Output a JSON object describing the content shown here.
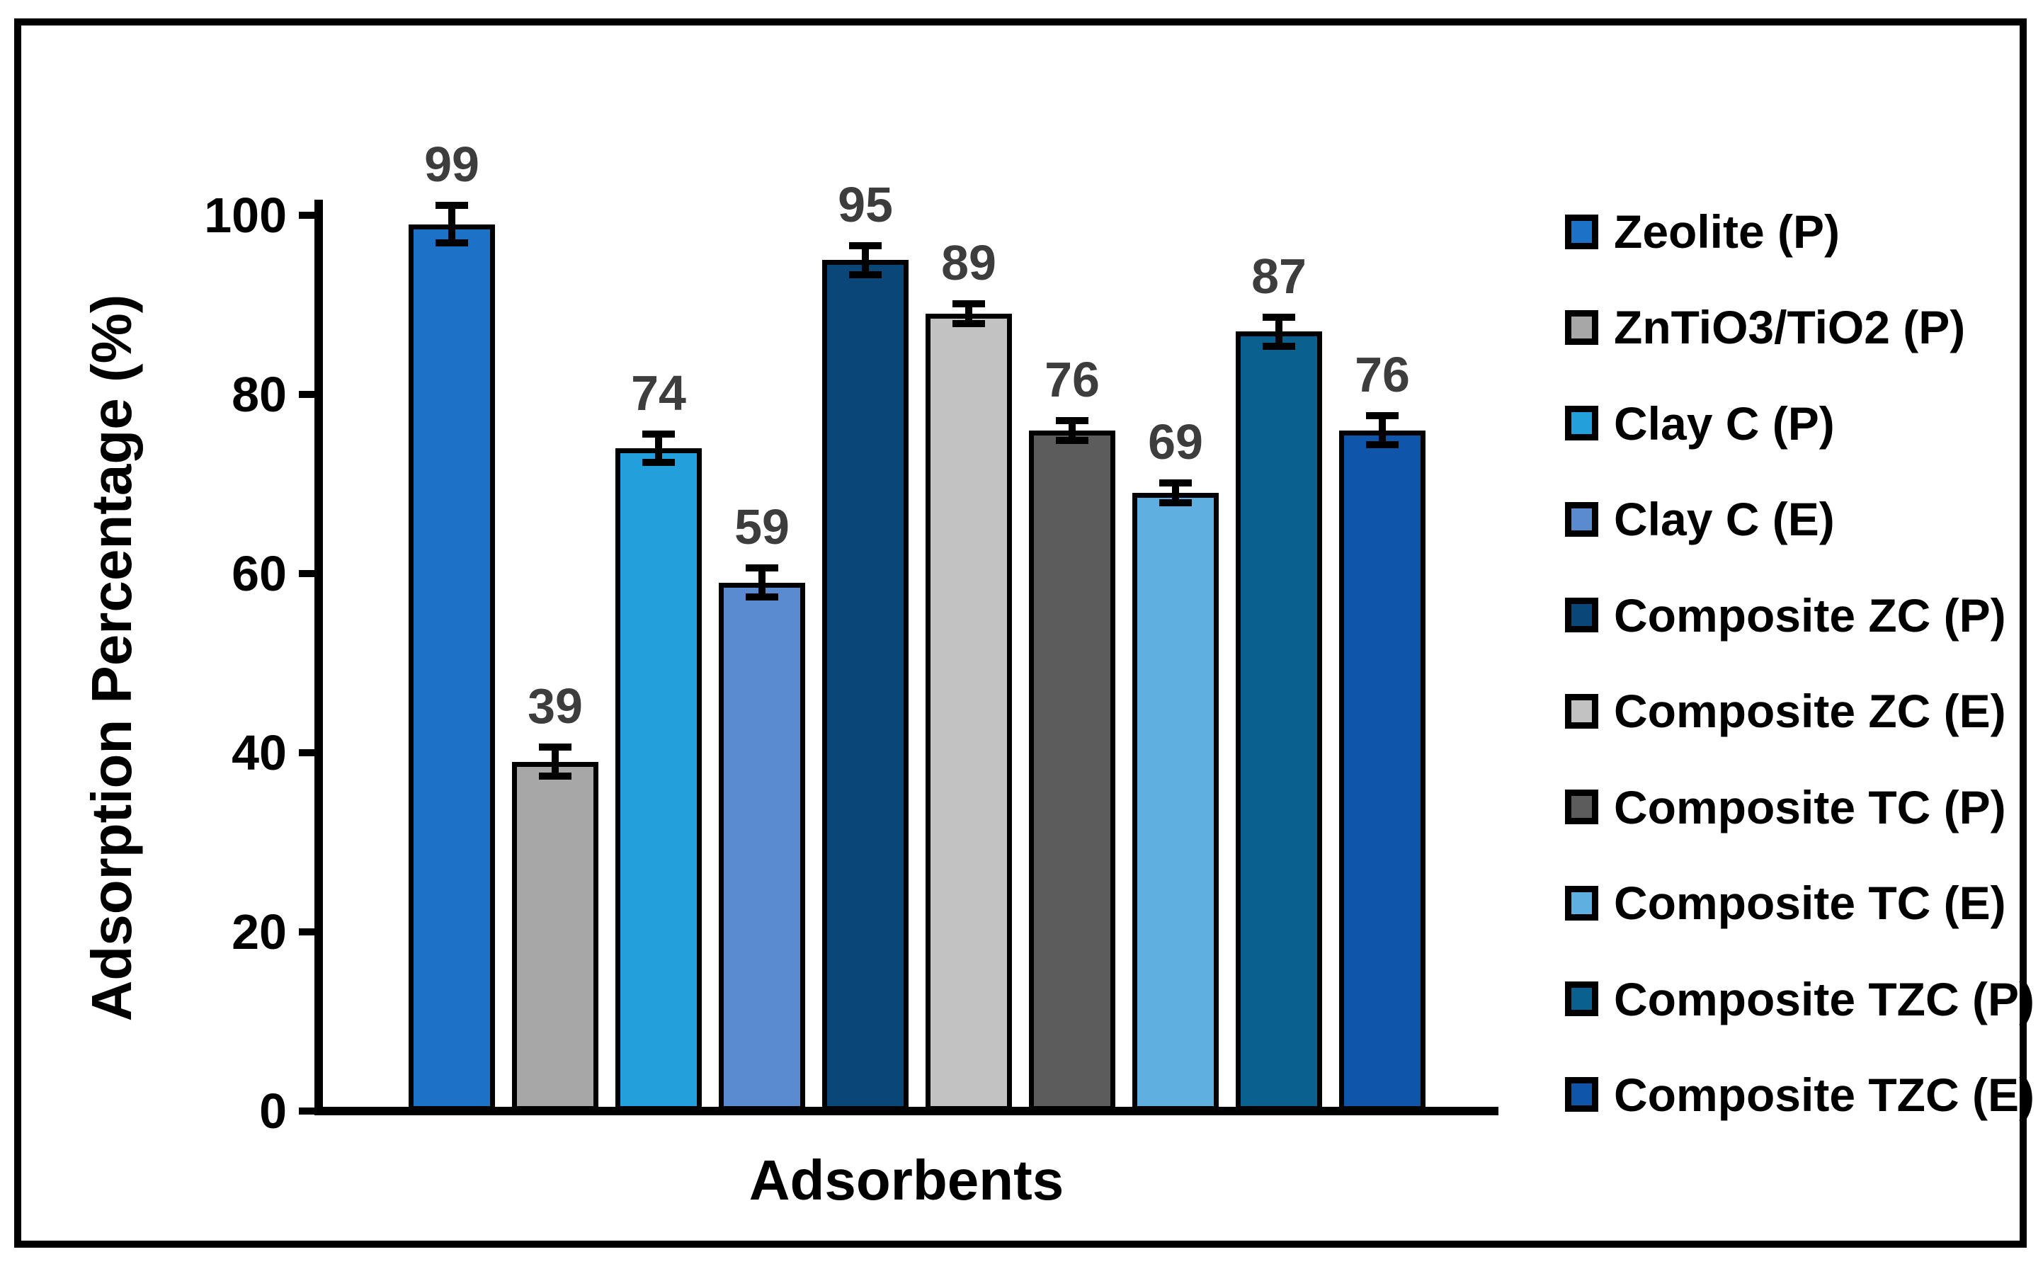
{
  "chart_data": {
    "type": "bar",
    "title": "",
    "xlabel": "Adsorbents",
    "ylabel": "Adsorption Percentage (%)",
    "ylim": [
      0,
      100
    ],
    "yticks": [
      0,
      20,
      40,
      60,
      80,
      100
    ],
    "grid": false,
    "legend_position": "right",
    "categories": [
      "Zeolite (P)",
      "ZnTiO3/TiO2 (P)",
      "Clay C (P)",
      "Clay C (E)",
      "Composite ZC (P)",
      "Composite ZC (E)",
      "Composite TC (P)",
      "Composite TC (E)",
      "Composite TZC (P)",
      "Composite TZC (E)"
    ],
    "values": [
      99,
      39,
      74,
      59,
      95,
      89,
      76,
      69,
      87,
      76
    ],
    "errors": [
      2.5,
      2,
      2,
      2,
      2,
      1.5,
      1.5,
      1.5,
      2,
      2
    ],
    "colors": [
      "#1C72C7",
      "#A7A7A7",
      "#22A0DB",
      "#5A8BD1",
      "#0A4678",
      "#C2C2C2",
      "#5C5C5C",
      "#5FB0E0",
      "#0A618F",
      "#0F56AB"
    ],
    "bar_outline_color": "#000000",
    "error_bar_color": "#000000",
    "value_label_color": "#3D3D3D",
    "axis_color": "#000000"
  }
}
